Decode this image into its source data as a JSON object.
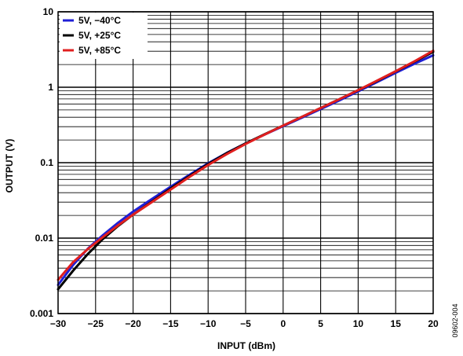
{
  "chart_data": {
    "type": "line",
    "xlabel": "INPUT (dBm)",
    "ylabel": "OUTPUT (V)",
    "xlim": [
      -30,
      20
    ],
    "ylim": [
      0.001,
      10
    ],
    "yscale": "log",
    "grid": true,
    "legend_position": "top-left",
    "x_ticks": [
      -30,
      -25,
      -20,
      -15,
      -10,
      -5,
      0,
      5,
      10,
      15,
      20
    ],
    "x_tick_labels": [
      "−30",
      "−25",
      "−20",
      "−15",
      "−10",
      "−5",
      "0",
      "5",
      "10",
      "15",
      "20"
    ],
    "y_ticks": [
      0.001,
      0.01,
      0.1,
      1,
      10
    ],
    "y_tick_labels": [
      "0.001",
      "0.01",
      "0.1",
      "1",
      "10"
    ],
    "series": [
      {
        "name": "5V, −40°C",
        "color": "#1f1fd6",
        "points": [
          [
            -30,
            0.0024
          ],
          [
            -28,
            0.0044
          ],
          [
            -26,
            0.0073
          ],
          [
            -24,
            0.011
          ],
          [
            -22,
            0.016
          ],
          [
            -20,
            0.0225
          ],
          [
            -17.5,
            0.033
          ],
          [
            -15,
            0.048
          ],
          [
            -12.5,
            0.069
          ],
          [
            -10,
            0.098
          ],
          [
            -7.5,
            0.135
          ],
          [
            -5,
            0.18
          ],
          [
            -2.5,
            0.235
          ],
          [
            0,
            0.305
          ],
          [
            2.5,
            0.395
          ],
          [
            5,
            0.515
          ],
          [
            7.5,
            0.67
          ],
          [
            10,
            0.88
          ],
          [
            12.5,
            1.17
          ],
          [
            15,
            1.55
          ],
          [
            17.5,
            2.05
          ],
          [
            20,
            2.65
          ]
        ]
      },
      {
        "name": "5V, +25°C",
        "color": "#000000",
        "points": [
          [
            -30,
            0.0021
          ],
          [
            -28,
            0.0037
          ],
          [
            -26,
            0.0062
          ],
          [
            -24,
            0.0098
          ],
          [
            -22,
            0.0145
          ],
          [
            -20,
            0.0205
          ],
          [
            -17.5,
            0.0305
          ],
          [
            -15,
            0.0455
          ],
          [
            -12.5,
            0.0665
          ],
          [
            -10,
            0.096
          ],
          [
            -7.5,
            0.134
          ],
          [
            -5,
            0.18
          ],
          [
            -2.5,
            0.237
          ],
          [
            0,
            0.31
          ],
          [
            2.5,
            0.405
          ],
          [
            5,
            0.53
          ],
          [
            7.5,
            0.695
          ],
          [
            10,
            0.91
          ],
          [
            12.5,
            1.21
          ],
          [
            15,
            1.62
          ],
          [
            17.5,
            2.18
          ],
          [
            20,
            2.95
          ]
        ]
      },
      {
        "name": "5V, +85°C",
        "color": "#e01f1f",
        "points": [
          [
            -30,
            0.0028
          ],
          [
            -28,
            0.0048
          ],
          [
            -26,
            0.0072
          ],
          [
            -24,
            0.0104
          ],
          [
            -22,
            0.0148
          ],
          [
            -20,
            0.0205
          ],
          [
            -17.5,
            0.03
          ],
          [
            -15,
            0.044
          ],
          [
            -12.5,
            0.0645
          ],
          [
            -10,
            0.093
          ],
          [
            -7.5,
            0.13
          ],
          [
            -5,
            0.177
          ],
          [
            -2.5,
            0.235
          ],
          [
            0,
            0.31
          ],
          [
            2.5,
            0.405
          ],
          [
            5,
            0.53
          ],
          [
            7.5,
            0.695
          ],
          [
            10,
            0.915
          ],
          [
            12.5,
            1.22
          ],
          [
            15,
            1.63
          ],
          [
            17.5,
            2.2
          ],
          [
            20,
            3.05
          ]
        ]
      }
    ]
  },
  "figure_id": "09602-004"
}
